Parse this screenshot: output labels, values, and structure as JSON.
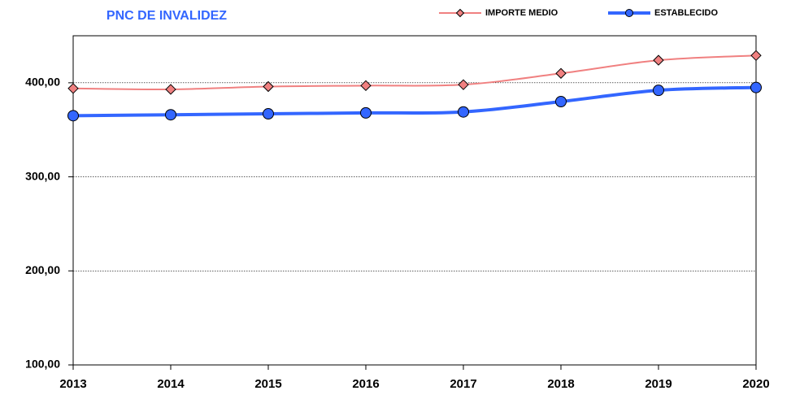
{
  "chart_data": {
    "type": "line",
    "title": "PNC DE INVALIDEZ",
    "categories": [
      "2013",
      "2014",
      "2015",
      "2016",
      "2017",
      "2018",
      "2019",
      "2020"
    ],
    "series": [
      {
        "name": "IMPORTE MEDIO",
        "color": "#f08080",
        "marker": "diamond",
        "values": [
          394,
          393,
          396,
          397,
          398,
          410,
          424,
          429
        ]
      },
      {
        "name": "ESTABLECIDO",
        "color": "#3366ff",
        "marker": "circle",
        "values": [
          365,
          366,
          367,
          368,
          369,
          380,
          392,
          395
        ]
      }
    ],
    "ylim": [
      100,
      450
    ],
    "yticks": [
      {
        "value": 100,
        "label": "100,00"
      },
      {
        "value": 200,
        "label": "200,00"
      },
      {
        "value": 300,
        "label": "300,00"
      },
      {
        "value": 400,
        "label": "400,00"
      }
    ],
    "grid": true,
    "legend": "top"
  }
}
